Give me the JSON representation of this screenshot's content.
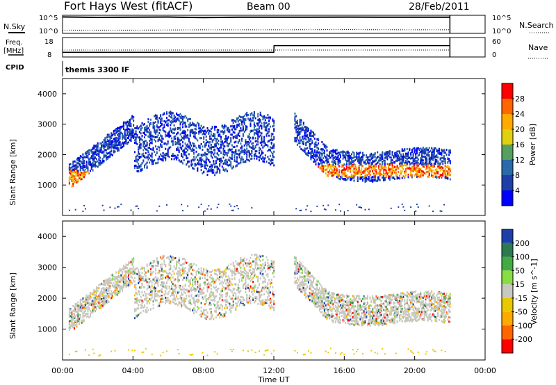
{
  "header": {
    "station": "Fort Hays West (fitACF)",
    "beam": "Beam 00",
    "date": "28/Feb/2011"
  },
  "panels": {
    "nsky_label": "N.Sky",
    "nsearch_label": "N.Search",
    "nsky_ticks": [
      "10^5",
      "10^0"
    ],
    "nsearch_ticks": [
      "10^5",
      "10^0"
    ],
    "freq_label_1": "Freq.",
    "freq_label_2": "[MHz]",
    "freq_ticks": [
      "18",
      "8"
    ],
    "nave_label": "Nave",
    "nave_ticks": [
      "60",
      "0"
    ],
    "cpid_label": "CPID",
    "cpid_text": "themis 3300 IF"
  },
  "colorbars": {
    "power": {
      "label": "Power [dB]",
      "ticks": [
        "28",
        "24",
        "20",
        "16",
        "12",
        "8",
        "4"
      ],
      "colors": [
        "#ff0000",
        "#ff6600",
        "#ffaa00",
        "#e0d010",
        "#55a060",
        "#2a6aa8",
        "#1f3fa8",
        "#0000ff"
      ]
    },
    "velocity": {
      "label": "Velocity [m s^-1]",
      "ticks": [
        "200",
        "100",
        "50",
        "15",
        "-15",
        "-50",
        "-100",
        "-200"
      ],
      "colors": [
        "#1f3fa8",
        "#2d7a50",
        "#44aa44",
        "#88dd44",
        "#c8c8c0",
        "#e8c800",
        "#ffaa00",
        "#ff6600",
        "#ff0000"
      ]
    }
  },
  "chart_data": [
    {
      "type": "line",
      "title": "N.Sky / N.Search",
      "xlabel": "Time UT",
      "xlim": [
        "00:00",
        "24:00"
      ],
      "yscale": "log",
      "ylim": [
        1,
        100000
      ],
      "series": [
        {
          "name": "N.Sky",
          "x": [
            0.0,
            2.0,
            4.0,
            6.0,
            8.0,
            10.0,
            12.0,
            14.0,
            16.0,
            18.0,
            20.0,
            22.0
          ],
          "values": [
            80000,
            60000,
            70000,
            75000,
            50000,
            70000,
            65000,
            70000,
            72000,
            70000,
            68000,
            70000
          ]
        },
        {
          "name": "N.Search",
          "x": [
            0.0,
            4.0,
            8.0,
            12.0,
            16.0,
            20.0,
            22.0
          ],
          "values": [
            4,
            4,
            5,
            5,
            6,
            5,
            5
          ]
        }
      ]
    },
    {
      "type": "line",
      "title": "Freq. / Nave",
      "xlabel": "Time UT",
      "xlim": [
        "00:00",
        "24:00"
      ],
      "series": [
        {
          "name": "Freq.",
          "x": [
            0.0,
            12.0,
            12.01,
            22.0
          ],
          "values": [
            10,
            10,
            14,
            14
          ]
        },
        {
          "name": "Nave",
          "x": [
            0.0,
            22.0
          ],
          "values": [
            12,
            12
          ]
        }
      ]
    },
    {
      "type": "heatmap",
      "title": "Power [dB]",
      "xlabel": "Time UT",
      "ylabel": "Slant Range [km]",
      "xlim": [
        "00:00",
        "24:00"
      ],
      "ylim": [
        0,
        4500
      ],
      "xticks": [
        "00:00",
        "04:00",
        "08:00",
        "12:00",
        "16:00",
        "20:00",
        "00:00"
      ],
      "yticks": [
        1000,
        2000,
        3000,
        4000
      ],
      "clim": [
        0,
        30
      ]
    },
    {
      "type": "heatmap",
      "title": "Velocity [m s^-1]",
      "xlabel": "Time UT",
      "ylabel": "Slant Range [km]",
      "xlim": [
        "00:00",
        "24:00"
      ],
      "ylim": [
        0,
        4500
      ],
      "xticks": [
        "00:00",
        "04:00",
        "08:00",
        "12:00",
        "16:00",
        "20:00",
        "00:00"
      ],
      "yticks": [
        1000,
        2000,
        3000,
        4000
      ],
      "clim": [
        -250,
        250
      ]
    }
  ],
  "axes": {
    "xlabel": "Time UT",
    "ylabel": "Slant Range [km]",
    "xticks": [
      "00:00",
      "04:00",
      "08:00",
      "12:00",
      "16:00",
      "20:00",
      "00:00"
    ],
    "yticks": [
      "1000",
      "2000",
      "3000",
      "4000"
    ]
  }
}
